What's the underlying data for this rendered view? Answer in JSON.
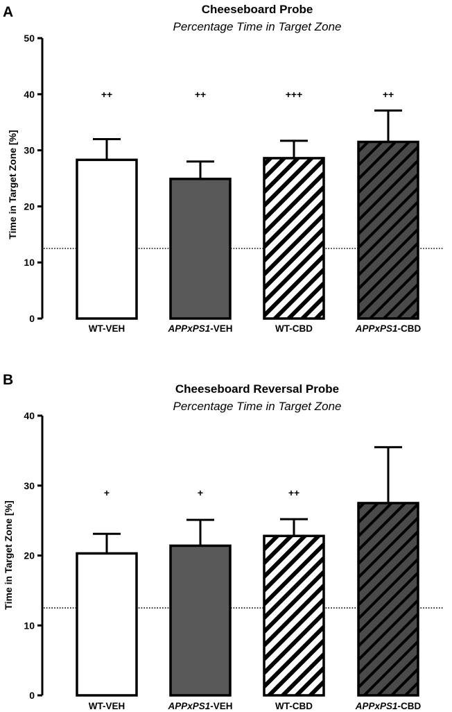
{
  "chart_data": [
    {
      "panel": "A",
      "type": "bar",
      "title": "Cheeseboard Probe",
      "subtitle": "Percentage Time in Target Zone",
      "ylabel": "Time in Target Zone [%]",
      "xlabel": "",
      "ylim": [
        0,
        50
      ],
      "yticks": [
        0,
        10,
        20,
        30,
        40,
        50
      ],
      "chance_level": 12.5,
      "categories": [
        {
          "prefix": "",
          "italic": "",
          "suffix": "WT-VEH"
        },
        {
          "prefix": "",
          "italic": "APPxPS1",
          "suffix": "-VEH"
        },
        {
          "prefix": "",
          "italic": "",
          "suffix": "WT-CBD"
        },
        {
          "prefix": "",
          "italic": "APPxPS1",
          "suffix": "-CBD"
        }
      ],
      "values": [
        28.3,
        24.9,
        28.6,
        31.5
      ],
      "errors": [
        3.7,
        3.1,
        3.1,
        5.6
      ],
      "significance": [
        "++",
        "++",
        "+++",
        "++"
      ],
      "significance_level": 40,
      "fills": [
        "white",
        "dark",
        "white-hatch",
        "dark-hatch"
      ]
    },
    {
      "panel": "B",
      "type": "bar",
      "title": "Cheeseboard Reversal Probe",
      "subtitle": "Percentage Time in Target Zone",
      "ylabel": "Time in Target Zone [%]",
      "xlabel": "",
      "ylim": [
        0,
        40
      ],
      "yticks": [
        0,
        10,
        20,
        30,
        40
      ],
      "chance_level": 12.5,
      "categories": [
        {
          "prefix": "",
          "italic": "",
          "suffix": "WT-VEH"
        },
        {
          "prefix": "",
          "italic": "APPxPS1",
          "suffix": "-VEH"
        },
        {
          "prefix": "",
          "italic": "",
          "suffix": "WT-CBD"
        },
        {
          "prefix": "",
          "italic": "APPxPS1",
          "suffix": "-CBD"
        }
      ],
      "values": [
        20.3,
        21.4,
        22.8,
        27.5
      ],
      "errors": [
        2.8,
        3.7,
        2.4,
        8.0
      ],
      "significance": [
        "+",
        "+",
        "++",
        ""
      ],
      "significance_level": 29,
      "fills": [
        "white",
        "dark",
        "white-hatch",
        "dark-hatch"
      ]
    }
  ],
  "colors": {
    "dark_fill": "#595959",
    "stroke": "#000000",
    "background": "#ffffff"
  }
}
